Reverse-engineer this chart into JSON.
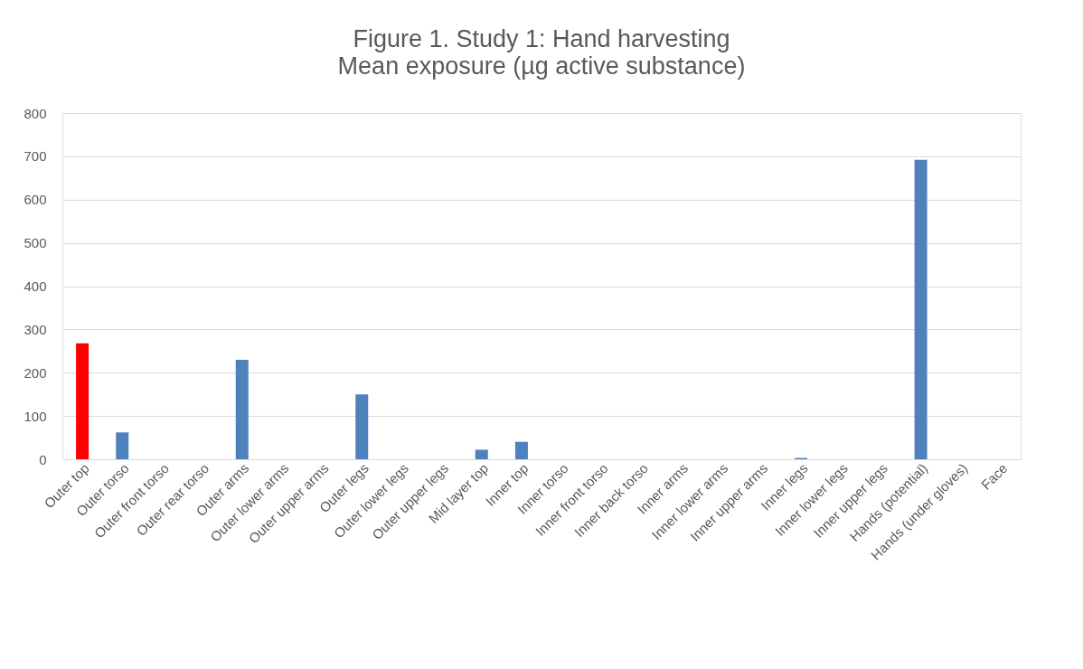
{
  "chart_data": {
    "type": "bar",
    "title": "Figure 1. Study 1: Hand harvesting",
    "subtitle": "Mean exposure (µg active substance)",
    "categories": [
      "Outer top",
      "Outer torso",
      "Outer front torso",
      "Outer rear torso",
      "Outer arms",
      "Outer lower arms",
      "Outer upper arms",
      "Outer legs",
      "Outer lower legs",
      "Outer upper legs",
      "Mid layer top",
      "Inner top",
      "Inner torso",
      "Inner front torso",
      "Inner back torso",
      "Inner arms",
      "Inner lower arms",
      "Inner upper arms",
      "Inner legs",
      "Inner lower legs",
      "Inner upper legs",
      "Hands (potential)",
      "Hands (under gloves)",
      "Face"
    ],
    "values": [
      268,
      62,
      0,
      0,
      230,
      0,
      0,
      150,
      0,
      0,
      22,
      40,
      0,
      0,
      0,
      0,
      0,
      0,
      3,
      0,
      0,
      692,
      0,
      0
    ],
    "colors": [
      "#ff0000",
      "#4f81bd",
      "#4f81bd",
      "#4f81bd",
      "#4f81bd",
      "#4f81bd",
      "#4f81bd",
      "#4f81bd",
      "#4f81bd",
      "#4f81bd",
      "#4f81bd",
      "#4f81bd",
      "#4f81bd",
      "#4f81bd",
      "#4f81bd",
      "#4f81bd",
      "#4f81bd",
      "#4f81bd",
      "#4f81bd",
      "#4f81bd",
      "#4f81bd",
      "#4f81bd",
      "#4f81bd",
      "#4f81bd"
    ],
    "ylim": [
      0,
      800
    ],
    "yticks": [
      0,
      100,
      200,
      300,
      400,
      500,
      600,
      700,
      800
    ],
    "grid": "y"
  }
}
